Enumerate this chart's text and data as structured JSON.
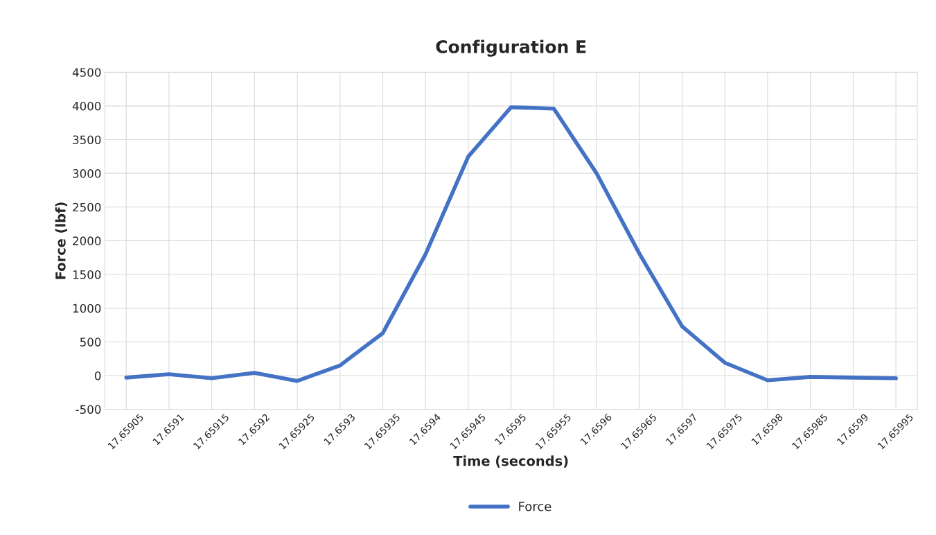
{
  "chart_data": {
    "type": "line",
    "title": "Configuration E",
    "xlabel": "Time (seconds)",
    "ylabel": "Force (lbf)",
    "categories": [
      "17.65905",
      "17.6591",
      "17.65915",
      "17.6592",
      "17.65925",
      "17.6593",
      "17.65935",
      "17.6594",
      "17.65945",
      "17.6595",
      "17.65955",
      "17.6596",
      "17.65965",
      "17.6597",
      "17.65975",
      "17.6598",
      "17.65985",
      "17.6599",
      "17.65995"
    ],
    "series": [
      {
        "name": "Force",
        "color": "#4472c4",
        "values": [
          -30,
          20,
          -40,
          40,
          -80,
          150,
          630,
          1800,
          3250,
          3980,
          3960,
          3000,
          1810,
          730,
          190,
          -70,
          -20,
          -30,
          -40
        ]
      }
    ],
    "ylim": [
      -500,
      4500
    ],
    "yticks": [
      -500,
      0,
      500,
      1000,
      1500,
      2000,
      2500,
      3000,
      3500,
      4000,
      4500
    ],
    "grid": true,
    "legend": "bottom",
    "marker": "none",
    "line_style": "solid"
  }
}
